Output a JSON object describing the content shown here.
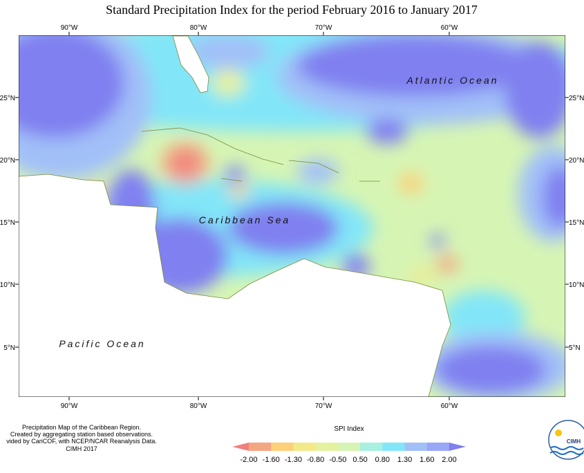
{
  "title": "Standard Precipitation Index for the period February 2016 to January 2017",
  "map": {
    "top_axis": [
      "90°W",
      "80°W",
      "70°W",
      "60°W"
    ],
    "bottom_axis": [
      "90°W",
      "80°W",
      "70°W",
      "60°W"
    ],
    "left_axis": [
      "25°N",
      "20°N",
      "15°N",
      "10°N",
      "5°N"
    ],
    "right_axis": [
      "25°N",
      "20°N",
      "15°N",
      "10°N",
      "5°N"
    ],
    "labels": [
      "Atlantic Ocean",
      "Caribbean Sea",
      "Pacific Ocean"
    ]
  },
  "credits": [
    "Precipitation Map of the Caribbean Region.",
    "Created by aggregating station based observations.",
    "vided by CariCOF, with NCEP/NCAR Reanalysis Data.",
    "CIMH 2017"
  ],
  "legend": {
    "title": "SPI Index",
    "labels": [
      "-2.00",
      "-1.60",
      "-1.30",
      "-0.80",
      "-0.50",
      "0.50",
      "0.80",
      "1.30",
      "1.60",
      "2.00"
    ],
    "colors": [
      "#f08080",
      "#f4a582",
      "#fdd07a",
      "#f3e98a",
      "#e6f1a0",
      "#d6f5b4",
      "#a8f0e0",
      "#82e6f8",
      "#a2c0f8",
      "#9aa6f6",
      "#8080f0"
    ]
  },
  "logo": {
    "text": "CIMH"
  }
}
